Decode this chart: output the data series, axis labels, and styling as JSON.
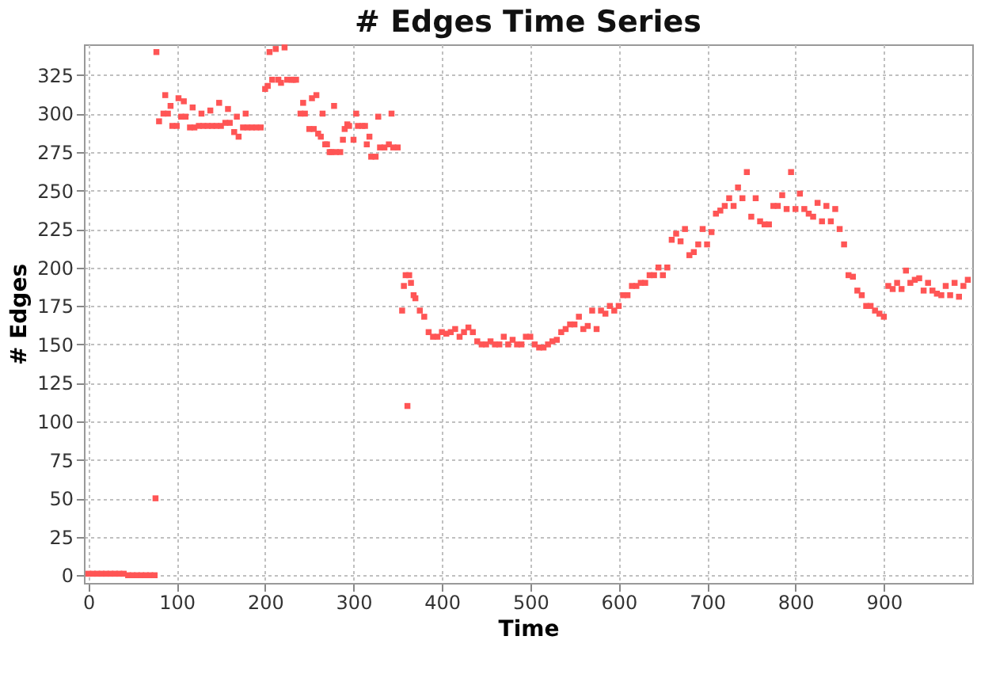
{
  "chart_data": {
    "type": "scatter",
    "title": "# Edges Time Series",
    "xlabel": "Time",
    "ylabel": "# Edges",
    "marker": "square",
    "grid": true,
    "legend": false,
    "xlim": [
      -5,
      1000
    ],
    "xticks": [
      0,
      100,
      200,
      300,
      400,
      500,
      600,
      700,
      800,
      900
    ],
    "ylim": [
      -5,
      345
    ],
    "yticks": [
      0,
      25,
      50,
      75,
      100,
      125,
      150,
      175,
      200,
      225,
      250,
      275,
      300,
      325
    ],
    "series": [
      {
        "color": "#ff5555",
        "x": [
          0,
          5,
          10,
          15,
          20,
          25,
          30,
          35,
          40,
          45,
          50,
          55,
          60,
          65,
          70,
          75,
          76,
          77,
          80,
          85,
          87,
          90,
          93,
          95,
          100,
          102,
          105,
          108,
          110,
          115,
          118,
          120,
          125,
          128,
          130,
          135,
          138,
          140,
          145,
          148,
          150,
          155,
          158,
          160,
          165,
          168,
          170,
          175,
          178,
          180,
          185,
          190,
          195,
          200,
          203,
          205,
          208,
          212,
          215,
          218,
          222,
          225,
          230,
          232,
          235,
          240,
          243,
          245,
          250,
          253,
          255,
          258,
          260,
          263,
          265,
          268,
          270,
          273,
          275,
          278,
          280,
          285,
          288,
          290,
          293,
          295,
          300,
          303,
          305,
          310,
          313,
          315,
          318,
          320,
          325,
          328,
          330,
          335,
          340,
          343,
          345,
          350,
          355,
          357,
          359,
          361,
          363,
          365,
          368,
          370,
          375,
          380,
          385,
          390,
          395,
          400,
          405,
          410,
          415,
          420,
          425,
          430,
          435,
          440,
          445,
          450,
          455,
          460,
          465,
          470,
          475,
          480,
          485,
          490,
          495,
          500,
          505,
          510,
          515,
          520,
          525,
          530,
          535,
          540,
          545,
          550,
          555,
          560,
          565,
          570,
          575,
          580,
          585,
          590,
          595,
          600,
          605,
          610,
          615,
          620,
          625,
          630,
          635,
          640,
          645,
          650,
          655,
          660,
          665,
          670,
          675,
          680,
          685,
          690,
          695,
          700,
          705,
          710,
          715,
          720,
          725,
          730,
          735,
          740,
          745,
          750,
          755,
          760,
          765,
          770,
          775,
          780,
          785,
          790,
          795,
          800,
          805,
          810,
          815,
          820,
          825,
          830,
          835,
          840,
          845,
          850,
          855,
          860,
          865,
          870,
          875,
          880,
          885,
          890,
          895,
          900,
          905,
          910,
          915,
          920,
          925,
          930,
          935,
          940,
          945,
          950,
          955,
          960,
          965,
          970,
          975,
          980,
          985,
          990,
          995
        ],
        "values": [
          1,
          1,
          1,
          1,
          1,
          1,
          1,
          1,
          1,
          0,
          0,
          0,
          0,
          0,
          0,
          0,
          50,
          340,
          295,
          300,
          312,
          300,
          305,
          292,
          292,
          310,
          298,
          308,
          298,
          291,
          304,
          291,
          292,
          300,
          292,
          292,
          302,
          292,
          292,
          307,
          292,
          294,
          303,
          294,
          288,
          298,
          285,
          291,
          300,
          291,
          291,
          291,
          291,
          316,
          318,
          340,
          322,
          342,
          322,
          320,
          343,
          322,
          322,
          322,
          322,
          300,
          307,
          300,
          290,
          310,
          290,
          312,
          287,
          285,
          300,
          280,
          280,
          275,
          275,
          305,
          275,
          275,
          283,
          290,
          293,
          292,
          283,
          300,
          292,
          292,
          292,
          280,
          285,
          272,
          272,
          298,
          278,
          278,
          280,
          300,
          278,
          278,
          172,
          188,
          195,
          110,
          195,
          190,
          182,
          180,
          172,
          168,
          158,
          155,
          155,
          158,
          157,
          158,
          160,
          155,
          158,
          161,
          158,
          152,
          150,
          150,
          152,
          150,
          150,
          155,
          150,
          153,
          150,
          150,
          155,
          155,
          150,
          148,
          148,
          150,
          152,
          153,
          158,
          160,
          163,
          163,
          168,
          160,
          162,
          172,
          160,
          172,
          170,
          175,
          172,
          175,
          182,
          182,
          188,
          188,
          190,
          190,
          195,
          195,
          200,
          195,
          200,
          218,
          222,
          217,
          225,
          208,
          210,
          215,
          225,
          215,
          223,
          235,
          237,
          240,
          245,
          240,
          252,
          245,
          262,
          233,
          245,
          230,
          228,
          228,
          240,
          240,
          247,
          238,
          262,
          238,
          248,
          238,
          235,
          233,
          242,
          230,
          240,
          230,
          238,
          225,
          215,
          195,
          194,
          185,
          182,
          175,
          175,
          172,
          170,
          168,
          188,
          186,
          190,
          186,
          198,
          190,
          192,
          193,
          185,
          190,
          185,
          183,
          182,
          188,
          182,
          190,
          181,
          188,
          192
        ]
      }
    ]
  }
}
